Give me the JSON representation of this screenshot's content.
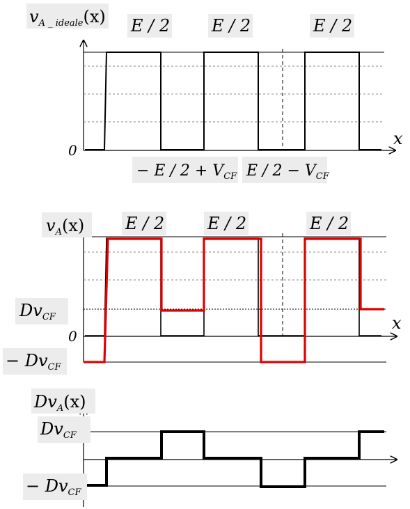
{
  "colors": {
    "ideal": "#000000",
    "actual": "#e00000",
    "error": "#000000",
    "axis": "#000000",
    "grid": "#888888",
    "label_bg": "#ececec"
  },
  "panel1": {
    "ylabel": {
      "v": "v",
      "sub": "A _ ideale",
      "arg": "(x)"
    },
    "xlabel": "x",
    "zero": "0",
    "top_labels": [
      "E / 2",
      "E / 2",
      "E / 2"
    ],
    "bottom_labels": [
      {
        "main": "− E / 2 + V",
        "sub": "CF"
      },
      {
        "main": "E / 2 − V",
        "sub": "CF"
      }
    ]
  },
  "panel2": {
    "ylabel": {
      "v": "v",
      "sub": "A",
      "arg": "(x)"
    },
    "xlabel": "x",
    "zero": "0",
    "top_labels": [
      "E / 2",
      "E / 2",
      "E / 2"
    ],
    "level_pos": {
      "main": "Dv",
      "sub": "CF"
    },
    "level_neg": {
      "main": "− Dv",
      "sub": "CF"
    }
  },
  "panel3": {
    "ylabel": {
      "v": "Dv",
      "sub": "A",
      "arg": "(x)"
    },
    "level_pos": {
      "main": "Dv",
      "sub": "CF"
    },
    "level_neg": {
      "main": "− Dv",
      "sub": "CF"
    }
  }
}
